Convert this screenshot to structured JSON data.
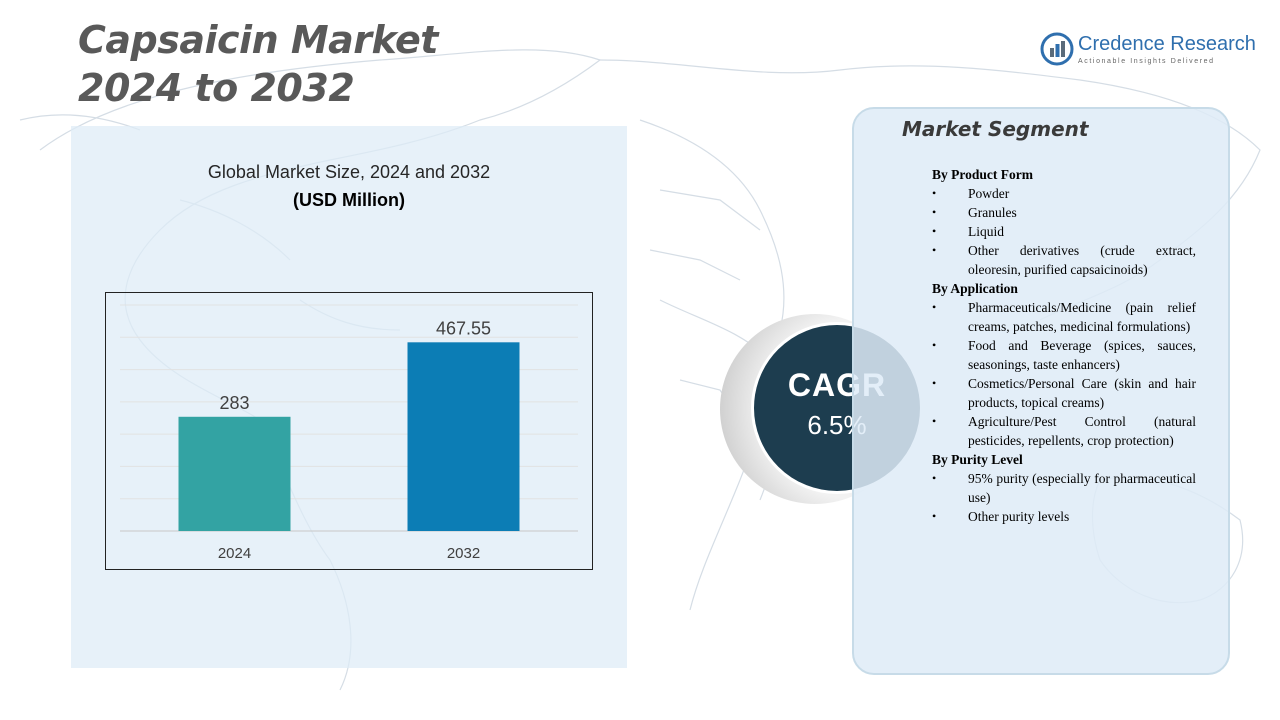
{
  "title": {
    "line1": "Capsaicin Market",
    "line2": "2024 to 2032"
  },
  "logo": {
    "name": "Credence Research",
    "tagline": "Actionable Insights Delivered"
  },
  "chart_panel": {
    "title": "Global Market Size, 2024 and 2032",
    "unit": "(USD Million)"
  },
  "chart_data": {
    "type": "bar",
    "title": "Global Market Size, 2024 and 2032",
    "ylabel": "(USD Million)",
    "xlabel": "",
    "categories": [
      "2024",
      "2032"
    ],
    "values": [
      283,
      467.55
    ],
    "value_labels": [
      "283",
      "467.55"
    ],
    "bar_colors": [
      "#33a3a3",
      "#0c7db5"
    ],
    "ylim": [
      0,
      560
    ],
    "grid": true,
    "legend": "none"
  },
  "cagr": {
    "label": "CAGR",
    "value": "6.5%",
    "color": "#1d3d4f"
  },
  "segment": {
    "title": "Market Segment",
    "groups": [
      {
        "heading": "By Product  Form",
        "items": [
          "Powder",
          "Granules",
          "Liquid",
          "Other derivatives  (crude extract, oleoresin,  purified  capsaicinoids)"
        ]
      },
      {
        "heading": "By Application",
        "items": [
          "Pharmaceuticals/Medicine  (pain relief creams, patches, medicinal formulations)",
          "Food and Beverage  (spices, sauces, seasonings,  taste enhancers)",
          "Cosmetics/Personal  Care (skin and hair products, topical creams)",
          "Agriculture/Pest  Control (natural pesticides,  repellents,  crop protection)"
        ]
      },
      {
        "heading": "By Purity  Level",
        "items": [
          "95% purity  (especially for pharmaceutical  use)",
          "Other purity  levels"
        ]
      }
    ]
  }
}
